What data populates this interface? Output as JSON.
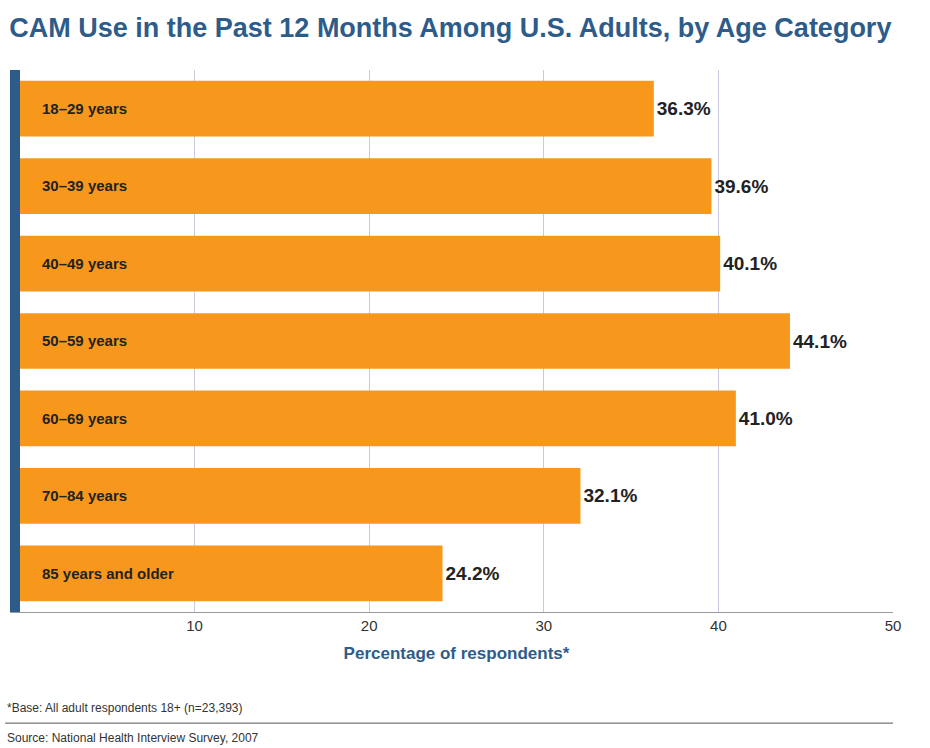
{
  "chart_data": {
    "type": "bar",
    "title": "CAM Use in the Past 12 Months Among U.S. Adults, by Age Category",
    "orientation": "horizontal",
    "categories": [
      "18–29 years",
      "30–39 years",
      "40–49 years",
      "50–59 years",
      "60–69 years",
      "70–84 years",
      "85 years and older"
    ],
    "values": [
      36.3,
      39.6,
      40.1,
      44.1,
      41.0,
      32.1,
      24.2
    ],
    "value_labels": [
      "36.3%",
      "39.6%",
      "40.1%",
      "44.1%",
      "41.0%",
      "32.1%",
      "24.2%"
    ],
    "data_labels": true,
    "color": "#f7981d",
    "xlabel": "Percentage of respondents*",
    "xlim": [
      0,
      50
    ],
    "xticks": [
      10,
      20,
      30,
      40,
      50
    ],
    "grid": true,
    "annotations": [
      "*Base: All adult respondents 18+ (n=23,393)",
      "Source: National Health Interview Survey, 2007"
    ]
  }
}
